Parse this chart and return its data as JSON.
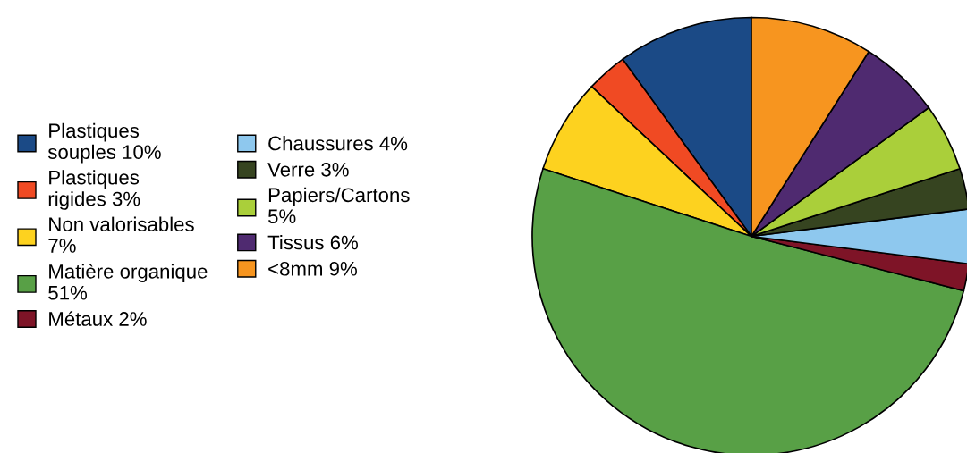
{
  "chart_data": {
    "type": "pie",
    "categories": [
      "Plastiques souples 10%",
      "Plastiques rigides 3%",
      "Non valorisables 7%",
      "Matière organique 51%",
      "Métaux 2%",
      "Chaussures 4%",
      "Verre 3%",
      "Papiers/Cartons 5%",
      "Tissus 6%",
      "<8mm 9%"
    ],
    "values": [
      10,
      3,
      7,
      51,
      2,
      4,
      3,
      5,
      6,
      9
    ],
    "colors": [
      "#1b4a86",
      "#f04a23",
      "#fdd21f",
      "#58a046",
      "#7e1427",
      "#8ec8ee",
      "#364420",
      "#aacf3a",
      "#4f2a70",
      "#f7951f"
    ],
    "legend": "left"
  }
}
